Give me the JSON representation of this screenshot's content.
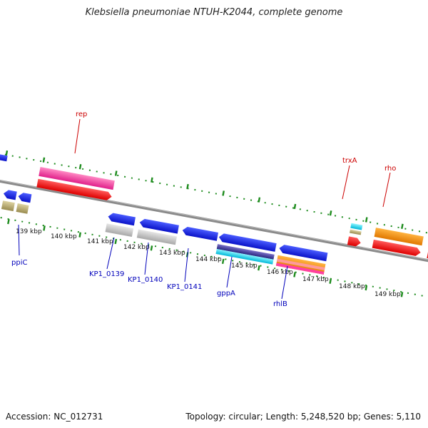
{
  "title": "Klebsiella pneumoniae NTUH-K2044, complete genome",
  "footer": {
    "accession": "Accession: NC_012731",
    "summary": "Topology: circular; Length: 5,248,520 bp; Genes: 5,110"
  },
  "colors": {
    "backbone": "#8a8a8a",
    "tick": "#1e8c1e",
    "top_label": "#cc0000",
    "bottom_label": "#0000bb"
  },
  "kbp_labels": [
    "139 kbp",
    "140 kbp",
    "141 kbp",
    "142 kbp",
    "143 kbp",
    "144 kbp",
    "145 kbp",
    "146 kbp",
    "147 kbp",
    "148 kbp",
    "149 kbp"
  ],
  "gene_labels_top": [
    "rep",
    "trxA",
    "rho"
  ],
  "gene_labels_bottom": [
    "ppiC",
    "KP1_0139",
    "KP1_0140",
    "KP1_0141",
    "gppA",
    "rhlB"
  ]
}
